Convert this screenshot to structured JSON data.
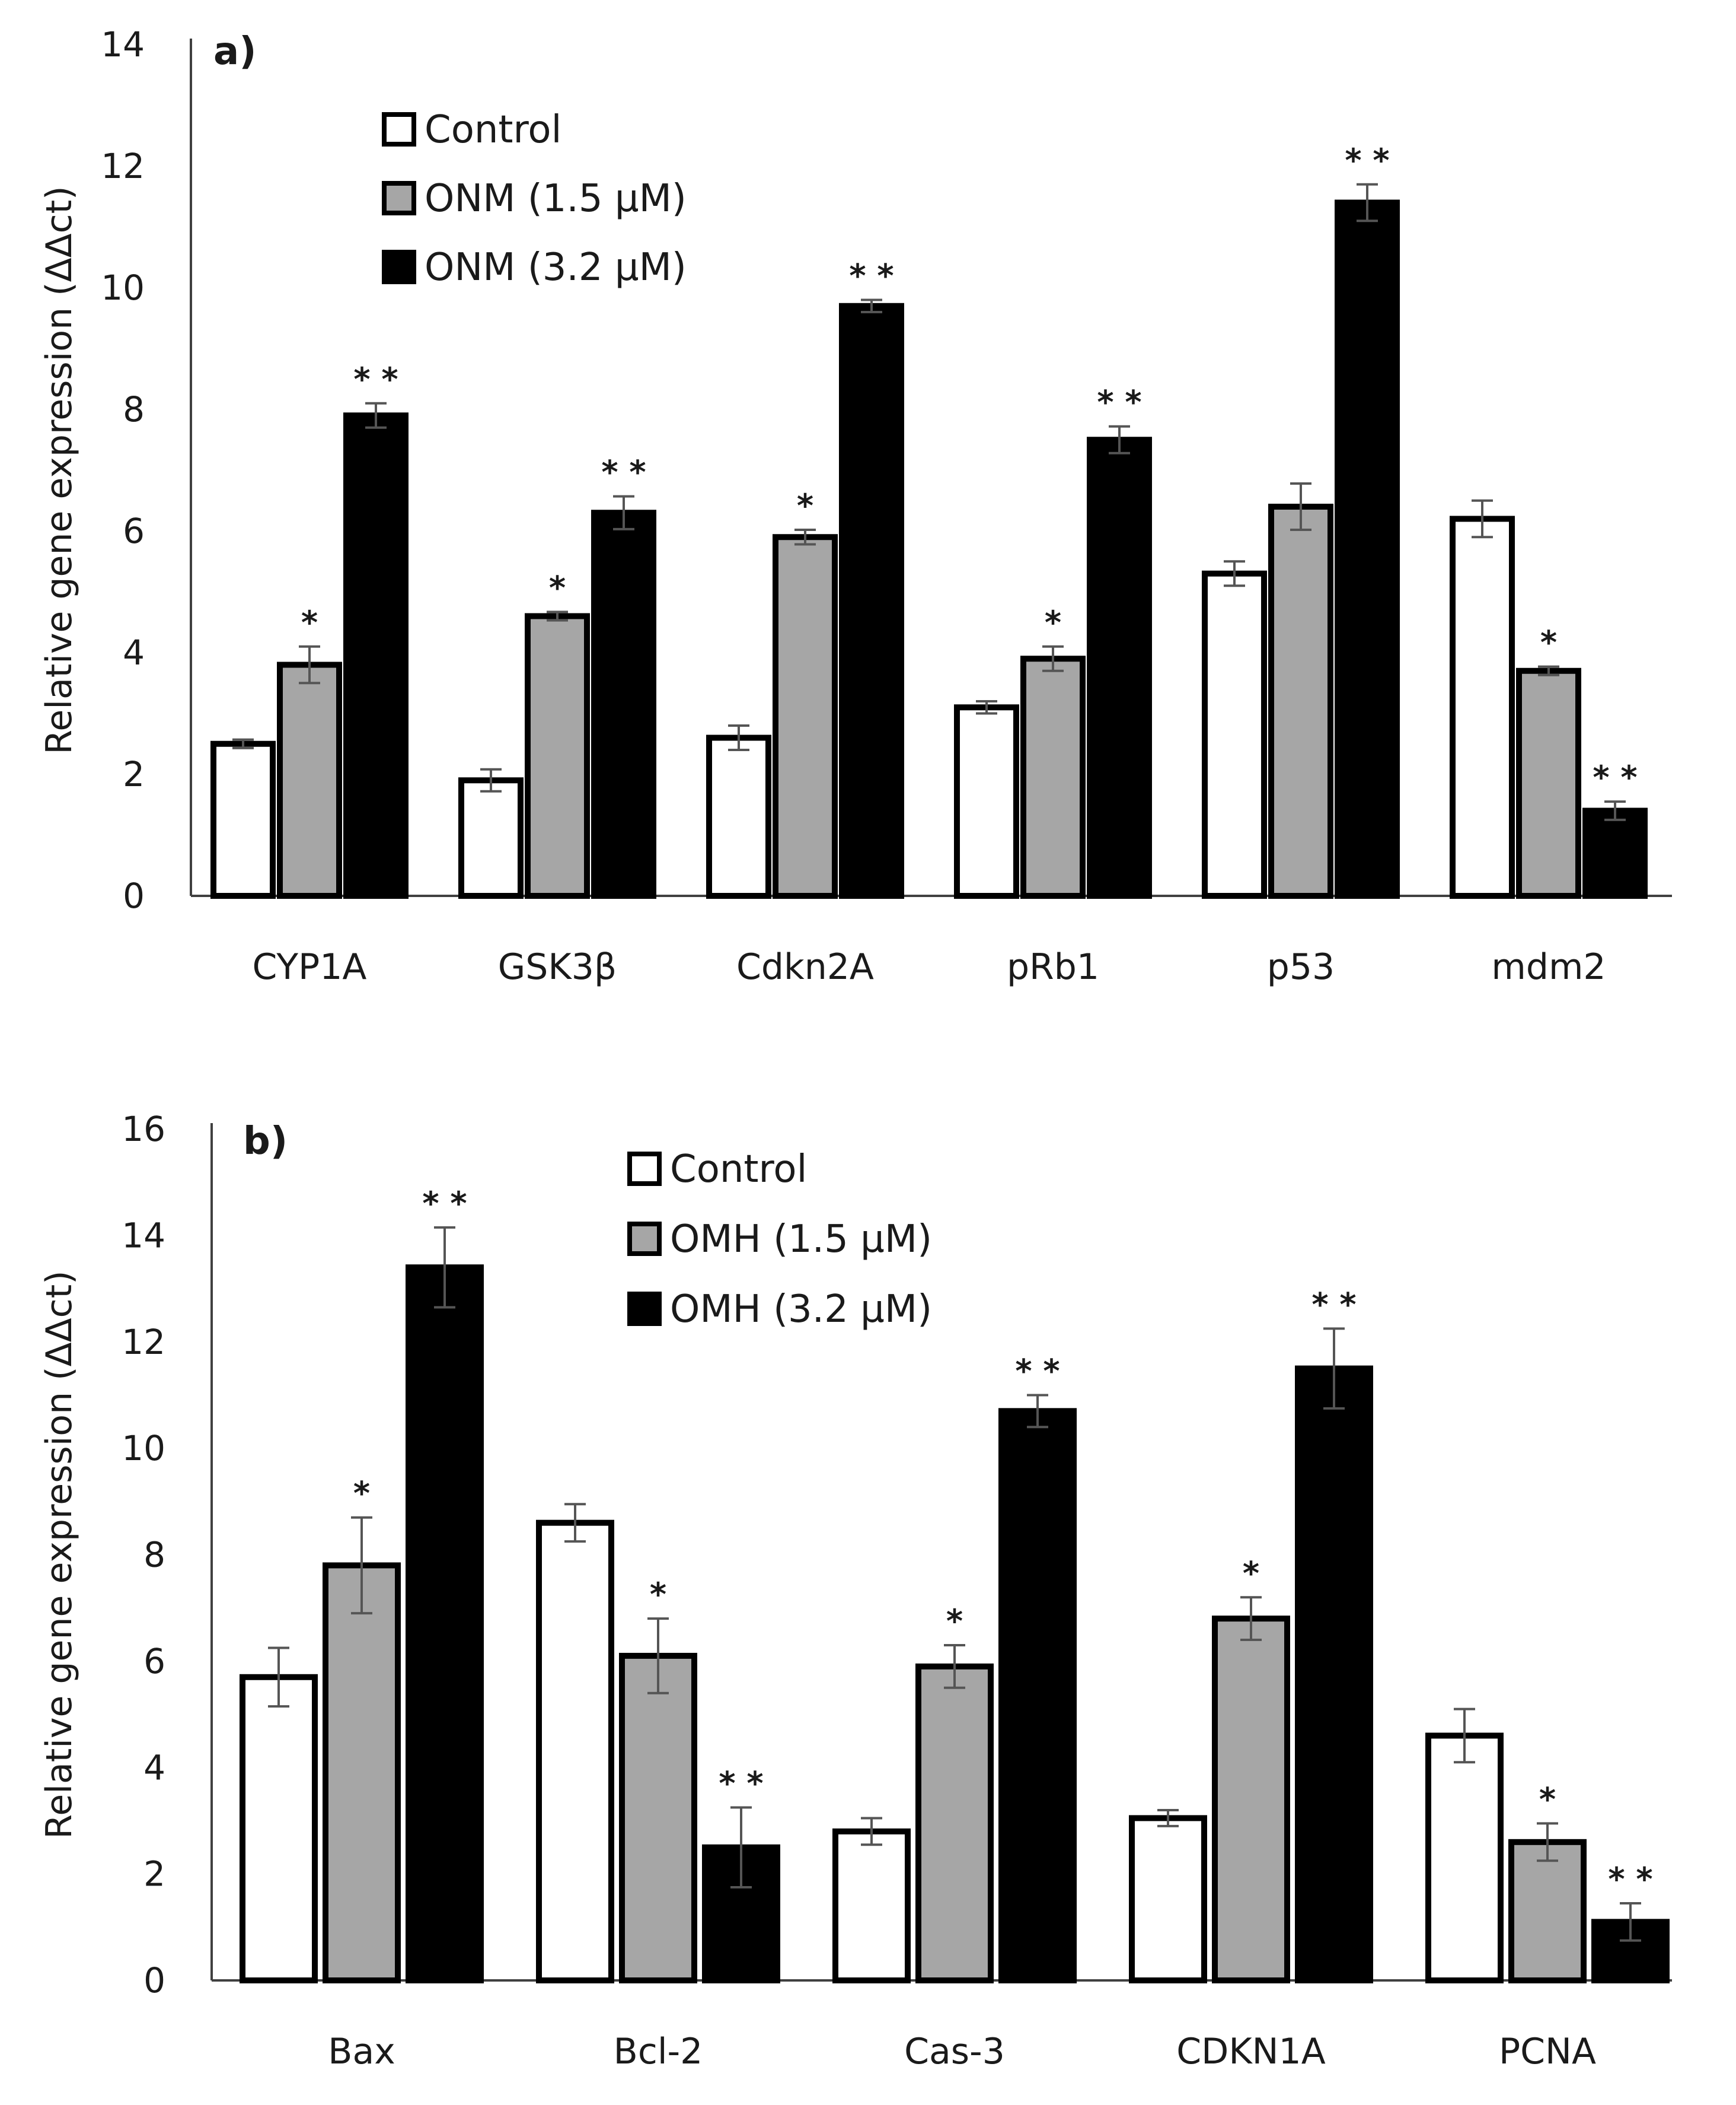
{
  "chart_data": [
    {
      "type": "bar",
      "panel_label": "a)",
      "title": "",
      "xlabel": "",
      "ylabel": "Relative gene expression (ΔΔct)",
      "ylim": [
        0,
        14
      ],
      "yticks": [
        "0",
        "2",
        "4",
        "6",
        "8",
        "10",
        "12",
        "14"
      ],
      "grid": false,
      "legend_position": "top-left",
      "categories": [
        "CYP1A",
        "GSK3β",
        "Cdkn2A",
        "pRb1",
        "p53",
        "mdm2"
      ],
      "series": [
        {
          "name": "Control",
          "fill": "#ffffff",
          "values": [
            2.5,
            1.9,
            2.6,
            3.1,
            5.3,
            6.2
          ],
          "errors": [
            0.07,
            0.18,
            0.2,
            0.1,
            0.2,
            0.3
          ],
          "significance": [
            "",
            "",
            "",
            "",
            "",
            ""
          ]
        },
        {
          "name": "ONM (1.5 μM)",
          "fill": "#a6a6a6",
          "values": [
            3.8,
            4.6,
            5.9,
            3.9,
            6.4,
            3.7
          ],
          "errors": [
            0.3,
            0.07,
            0.12,
            0.2,
            0.38,
            0.07
          ],
          "significance": [
            "*",
            "*",
            "*",
            "*",
            "",
            "*"
          ]
        },
        {
          "name": "ONM (3.2 μM)",
          "fill": "#000000",
          "values": [
            7.9,
            6.3,
            9.7,
            7.5,
            11.4,
            1.4
          ],
          "errors": [
            0.2,
            0.27,
            0.1,
            0.22,
            0.3,
            0.15
          ],
          "significance": [
            "**",
            "**",
            "**",
            "**",
            "**",
            "**"
          ]
        }
      ]
    },
    {
      "type": "bar",
      "panel_label": "b)",
      "title": "",
      "xlabel": "",
      "ylabel": "Relative gene expression (ΔΔct)",
      "ylim": [
        0,
        16
      ],
      "yticks": [
        "0",
        "2",
        "4",
        "6",
        "8",
        "10",
        "12",
        "14",
        "16"
      ],
      "grid": false,
      "legend_position": "top-center",
      "categories": [
        "Bax",
        "Bcl-2",
        "Cas-3",
        "CDKN1A",
        "PCNA"
      ],
      "series": [
        {
          "name": "Control",
          "fill": "#ffffff",
          "values": [
            5.7,
            8.6,
            2.8,
            3.05,
            4.6
          ],
          "errors": [
            0.55,
            0.35,
            0.25,
            0.15,
            0.5
          ],
          "significance": [
            "",
            "",
            "",
            "",
            ""
          ]
        },
        {
          "name": "OMH (1.5 μM)",
          "fill": "#a6a6a6",
          "values": [
            7.8,
            6.1,
            5.9,
            6.8,
            2.6
          ],
          "errors": [
            0.9,
            0.7,
            0.4,
            0.4,
            0.35
          ],
          "significance": [
            "*",
            "*",
            "*",
            "*",
            "*"
          ]
        },
        {
          "name": "OMH (3.2 μM)",
          "fill": "#000000",
          "values": [
            13.4,
            2.5,
            10.7,
            11.5,
            1.1
          ],
          "errors": [
            0.75,
            0.75,
            0.3,
            0.75,
            0.35
          ],
          "significance": [
            "**",
            "**",
            "**",
            "**",
            "**"
          ]
        }
      ]
    }
  ]
}
